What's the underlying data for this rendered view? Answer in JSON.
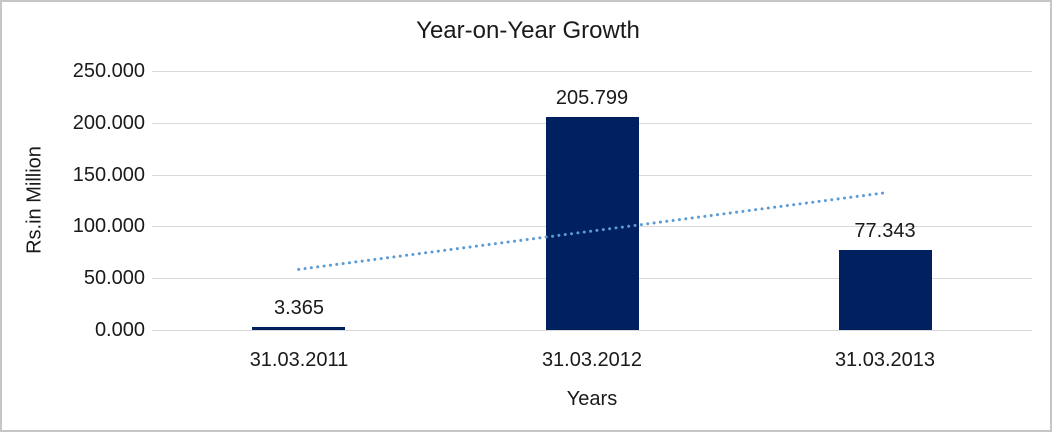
{
  "chart_data": {
    "type": "bar",
    "title": "Year-on-Year Growth",
    "xlabel": "Years",
    "ylabel": "Rs.in Million",
    "categories": [
      "31.03.2011",
      "31.03.2012",
      "31.03.2013"
    ],
    "values": [
      3.365,
      205.799,
      77.343
    ],
    "value_labels": [
      "3.365",
      "205.799",
      "77.343"
    ],
    "y_ticks": [
      0,
      50,
      100,
      150,
      200,
      250
    ],
    "y_tick_labels": [
      "0.000",
      "50.000",
      "100.000",
      "150.000",
      "200.000",
      "250.000"
    ],
    "ylim": [
      0,
      250
    ],
    "grid": true,
    "legend_position": "none",
    "trendline": {
      "type": "linear",
      "style": "dotted",
      "start_value": 58.51,
      "end_value": 132.49
    },
    "colors": {
      "bar": "#002060",
      "trendline": "#5b9bd5",
      "gridline": "#d9d9d9",
      "text": "#1a1a1a",
      "background": "#ffffff",
      "frame_border": "#c6c6c6"
    }
  }
}
